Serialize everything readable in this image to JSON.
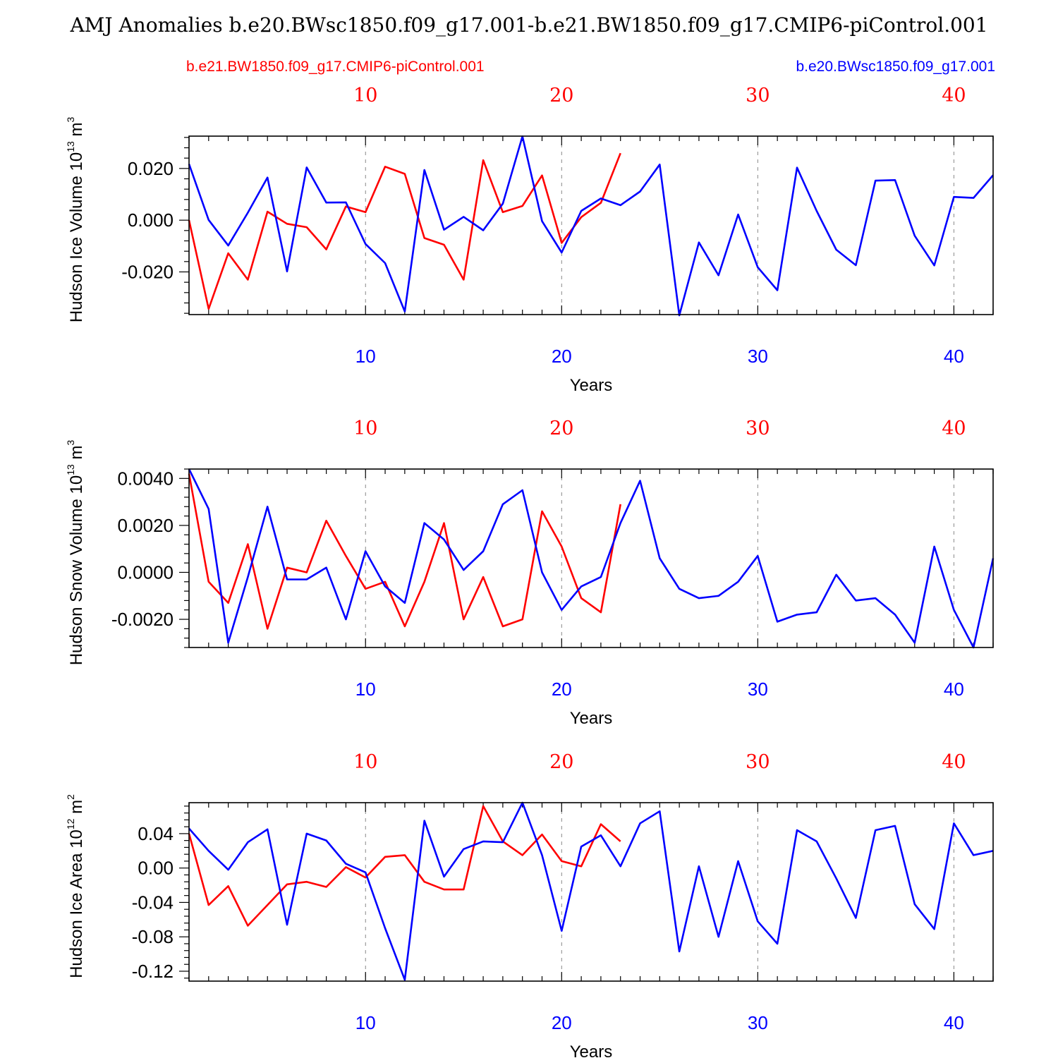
{
  "title": "AMJ Anomalies b.e20.BWsc1850.f09_g17.001-b.e21.BW1850.f09_g17.CMIP6-piControl.001",
  "legend": {
    "left_label": "b.e21.BW1850.f09_g17.CMIP6-piControl.001",
    "right_label": "b.e20.BWsc1850.f09_g17.001"
  },
  "colors": {
    "control": "#ff0000",
    "experiment": "#0000ff",
    "axis": "#000000",
    "grid": "#888888"
  },
  "chart_data": [
    {
      "type": "line",
      "id": "ice-volume",
      "ylabel": "Hudson Ice Volume",
      "yunit": "10",
      "yunit_exp": "13",
      "yunit_suffix": "m",
      "yunit_suffix_exp": "3",
      "xlabel": "Years",
      "xlim": [
        1,
        42
      ],
      "ylim": [
        -0.0365,
        0.0325
      ],
      "yticks": [
        -0.02,
        0.0,
        0.02
      ],
      "ytick_labels": [
        "-0.020",
        "0.000",
        "0.020"
      ],
      "yminor_step": 0.004,
      "xticks": [
        10,
        20,
        30,
        40
      ],
      "xtick_labels": [
        "10",
        "20",
        "30",
        "40"
      ],
      "top_xtick_labels": [
        "10",
        "20",
        "30",
        "40"
      ],
      "series": [
        {
          "name": "b.e21.BW1850.f09_g17.CMIP6-piControl.001",
          "color": "#ff0000",
          "x": [
            1,
            2,
            3,
            4,
            5,
            6,
            7,
            8,
            9,
            10,
            11,
            12,
            13,
            14,
            15,
            16,
            17,
            18,
            19,
            20,
            21,
            22,
            23
          ],
          "values": [
            0.0,
            -0.0343,
            -0.0128,
            -0.023,
            0.0033,
            -0.0014,
            -0.0027,
            -0.0113,
            0.0053,
            0.0031,
            0.0207,
            0.0179,
            -0.0069,
            -0.0095,
            -0.023,
            0.0232,
            0.0031,
            0.0055,
            0.0173,
            -0.0088,
            0.0012,
            0.0067,
            0.0259
          ]
        },
        {
          "name": "b.e20.BWsc1850.f09_g17.001",
          "color": "#0000ff",
          "x": [
            1,
            2,
            3,
            4,
            5,
            6,
            7,
            8,
            9,
            10,
            11,
            12,
            13,
            14,
            15,
            16,
            17,
            18,
            19,
            20,
            21,
            22,
            23,
            24,
            25,
            26,
            27,
            28,
            29,
            30,
            31,
            32,
            33,
            34,
            35,
            36,
            37,
            38,
            39,
            40,
            41,
            42
          ],
          "values": [
            0.0217,
            0.0001,
            -0.0098,
            0.0029,
            0.0165,
            -0.0198,
            0.0204,
            0.0068,
            0.0069,
            -0.0092,
            -0.0166,
            -0.0353,
            0.0194,
            -0.0037,
            0.0013,
            -0.0039,
            0.0064,
            0.0324,
            -0.0004,
            -0.0125,
            0.0036,
            0.0084,
            0.0058,
            0.0111,
            0.0215,
            -0.0368,
            -0.0086,
            -0.0213,
            0.0022,
            -0.0182,
            -0.0271,
            0.0203,
            0.0036,
            -0.0114,
            -0.0174,
            0.0153,
            0.0155,
            -0.006,
            -0.0175,
            0.009,
            0.0086,
            0.0174
          ]
        }
      ]
    },
    {
      "type": "line",
      "id": "snow-volume",
      "ylabel": "Hudson Snow Volume",
      "yunit": "10",
      "yunit_exp": "13",
      "yunit_suffix": "m",
      "yunit_suffix_exp": "3",
      "xlabel": "Years",
      "xlim": [
        1,
        42
      ],
      "ylim": [
        -0.0032,
        0.0044
      ],
      "yticks": [
        -0.002,
        0.0,
        0.002,
        0.004
      ],
      "ytick_labels": [
        "-0.0020",
        "0.0000",
        "0.0020",
        "0.0040"
      ],
      "yminor_step": 0.0004,
      "xticks": [
        10,
        20,
        30,
        40
      ],
      "xtick_labels": [
        "10",
        "20",
        "30",
        "40"
      ],
      "top_xtick_labels": [
        "10",
        "20",
        "30",
        "40"
      ],
      "series": [
        {
          "name": "b.e21.BW1850.f09_g17.CMIP6-piControl.001",
          "color": "#ff0000",
          "x": [
            1,
            2,
            3,
            4,
            5,
            6,
            7,
            8,
            9,
            10,
            11,
            12,
            13,
            14,
            15,
            16,
            17,
            18,
            19,
            20,
            21,
            22,
            23
          ],
          "values": [
            0.0042,
            -0.0004,
            -0.0013,
            0.0012,
            -0.0024,
            0.0002,
            0.0,
            0.0022,
            0.0007,
            -0.0007,
            -0.0004,
            -0.0023,
            -0.0004,
            0.0021,
            -0.002,
            -0.0002,
            -0.0023,
            -0.002,
            0.0026,
            0.0011,
            -0.0011,
            -0.0017,
            0.0029
          ]
        },
        {
          "name": "b.e20.BWsc1850.f09_g17.001",
          "color": "#0000ff",
          "x": [
            1,
            2,
            3,
            4,
            5,
            6,
            7,
            8,
            9,
            10,
            11,
            12,
            13,
            14,
            15,
            16,
            17,
            18,
            19,
            20,
            21,
            22,
            23,
            24,
            25,
            26,
            27,
            28,
            29,
            30,
            31,
            32,
            33,
            34,
            35,
            36,
            37,
            38,
            39,
            40,
            41,
            42
          ],
          "values": [
            0.0044,
            0.0027,
            -0.003,
            -0.0002,
            0.0028,
            -0.0003,
            -0.0003,
            0.0002,
            -0.002,
            0.0009,
            -0.0006,
            -0.0013,
            0.0021,
            0.0014,
            0.0001,
            0.0009,
            0.0029,
            0.0035,
            0.0,
            -0.0016,
            -0.0006,
            -0.0002,
            0.0021,
            0.0039,
            0.0006,
            -0.0007,
            -0.0011,
            -0.001,
            -0.0004,
            0.0007,
            -0.0021,
            -0.0018,
            -0.0017,
            -0.0001,
            -0.0012,
            -0.0011,
            -0.0018,
            -0.003,
            0.0011,
            -0.0016,
            -0.0032,
            0.0006
          ]
        }
      ]
    },
    {
      "type": "line",
      "id": "ice-area",
      "ylabel": "Hudson Ice Area",
      "yunit": "10",
      "yunit_exp": "12",
      "yunit_suffix": "m",
      "yunit_suffix_exp": "2",
      "xlabel": "Years",
      "xlim": [
        1,
        42
      ],
      "ylim": [
        -0.1315,
        0.076
      ],
      "yticks": [
        -0.12,
        -0.08,
        -0.04,
        0.0,
        0.04
      ],
      "ytick_labels": [
        "-0.12",
        "-0.08",
        "-0.04",
        "0.00",
        "0.04"
      ],
      "yminor_step": 0.008,
      "xticks": [
        10,
        20,
        30,
        40
      ],
      "xtick_labels": [
        "10",
        "20",
        "30",
        "40"
      ],
      "top_xtick_labels": [
        "10",
        "20",
        "30",
        "40"
      ],
      "series": [
        {
          "name": "b.e21.BW1850.f09_g17.CMIP6-piControl.001",
          "color": "#ff0000",
          "x": [
            1,
            2,
            3,
            4,
            5,
            6,
            7,
            8,
            9,
            10,
            11,
            12,
            13,
            14,
            15,
            16,
            17,
            18,
            19,
            20,
            21,
            22,
            23
          ],
          "values": [
            0.04,
            -0.043,
            -0.021,
            -0.067,
            -0.043,
            -0.019,
            -0.016,
            -0.022,
            0.001,
            -0.011,
            0.013,
            0.015,
            -0.016,
            -0.025,
            -0.025,
            0.072,
            0.031,
            0.015,
            0.039,
            0.008,
            0.002,
            0.051,
            0.031
          ]
        },
        {
          "name": "b.e20.BWsc1850.f09_g17.001",
          "color": "#0000ff",
          "x": [
            1,
            2,
            3,
            4,
            5,
            6,
            7,
            8,
            9,
            10,
            11,
            12,
            13,
            14,
            15,
            16,
            17,
            18,
            19,
            20,
            21,
            22,
            23,
            24,
            25,
            26,
            27,
            28,
            29,
            30,
            31,
            32,
            33,
            34,
            35,
            36,
            37,
            38,
            39,
            40,
            41,
            42
          ],
          "values": [
            0.046,
            0.02,
            -0.002,
            0.03,
            0.045,
            -0.066,
            0.04,
            0.032,
            0.005,
            -0.005,
            -0.07,
            -0.13,
            0.055,
            -0.01,
            0.022,
            0.031,
            0.03,
            0.076,
            0.015,
            -0.073,
            0.025,
            0.038,
            0.002,
            0.052,
            0.066,
            -0.097,
            0.002,
            -0.08,
            0.008,
            -0.062,
            -0.088,
            0.044,
            0.031,
            -0.012,
            -0.058,
            0.044,
            0.049,
            -0.042,
            -0.071,
            0.052,
            0.015,
            0.02
          ]
        }
      ]
    }
  ]
}
